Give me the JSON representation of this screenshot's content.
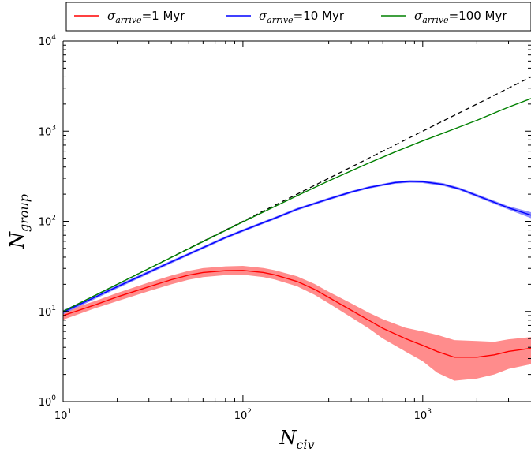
{
  "chart_data": {
    "type": "line",
    "x_scale": "log",
    "y_scale": "log",
    "xlim": [
      10,
      4000
    ],
    "ylim": [
      1,
      10000
    ],
    "grid": false,
    "legend_placement": "top",
    "xlabel": {
      "base": "N",
      "sub": "civ"
    },
    "ylabel": {
      "base": "N",
      "sub": "group"
    },
    "x_ticks": [
      {
        "value": 10,
        "base": "10",
        "exp": "1"
      },
      {
        "value": 100,
        "base": "10",
        "exp": "2"
      },
      {
        "value": 1000,
        "base": "10",
        "exp": "3"
      }
    ],
    "y_ticks": [
      {
        "value": 1,
        "base": "10",
        "exp": "0"
      },
      {
        "value": 10,
        "base": "10",
        "exp": "1"
      },
      {
        "value": 100,
        "base": "10",
        "exp": "2"
      },
      {
        "value": 1000,
        "base": "10",
        "exp": "3"
      },
      {
        "value": 10000,
        "base": "10",
        "exp": "4"
      }
    ],
    "reference_line": {
      "style": "dashed",
      "color": "#000000",
      "x": [
        10,
        4000
      ],
      "y": [
        10,
        4000
      ]
    },
    "series": [
      {
        "label": {
          "sym": "σ",
          "sub": "arrive",
          "rest": "=1 Myr"
        },
        "color": "#ff0000",
        "band_color": "#ff8080",
        "x": [
          10,
          15,
          20,
          30,
          40,
          50,
          60,
          80,
          100,
          130,
          150,
          200,
          250,
          300,
          400,
          500,
          600,
          800,
          1000,
          1200,
          1500,
          2000,
          2500,
          3000,
          4000
        ],
        "y": [
          9.0,
          11.8,
          14.5,
          18.8,
          22.5,
          25.3,
          27.0,
          28.3,
          28.5,
          27.0,
          25.5,
          21.5,
          17.6,
          14.3,
          10.3,
          8.0,
          6.5,
          5.0,
          4.2,
          3.6,
          3.1,
          3.1,
          3.3,
          3.6,
          3.9
        ],
        "y_low": [
          8.1,
          10.8,
          13.0,
          16.8,
          20.0,
          22.5,
          24.0,
          25.3,
          25.5,
          24.0,
          22.6,
          19.0,
          15.3,
          12.3,
          8.6,
          6.5,
          5.0,
          3.6,
          2.8,
          2.1,
          1.7,
          1.8,
          2.0,
          2.3,
          2.6
        ],
        "y_high": [
          10.0,
          13.0,
          16.0,
          21.0,
          25.0,
          28.2,
          30.2,
          31.6,
          32.0,
          30.3,
          28.7,
          24.5,
          20.2,
          16.5,
          12.3,
          9.7,
          8.2,
          6.6,
          6.0,
          5.5,
          4.8,
          4.7,
          4.6,
          4.9,
          5.2
        ]
      },
      {
        "label": {
          "sym": "σ",
          "sub": "arrive",
          "rest": "=10 Myr"
        },
        "color": "#0000ff",
        "band_color": "#8080ff",
        "x": [
          10,
          20,
          40,
          60,
          80,
          100,
          150,
          200,
          300,
          400,
          500,
          700,
          850,
          1000,
          1300,
          1600,
          2000,
          3000,
          4000
        ],
        "y": [
          9.8,
          18.8,
          35.5,
          51,
          66,
          79,
          108,
          136,
          177,
          211,
          237,
          269,
          277,
          275,
          256,
          229,
          193,
          141,
          117
        ],
        "y_low": [
          9.3,
          18.0,
          34.2,
          49.3,
          63.8,
          76.4,
          104.6,
          131.6,
          171.5,
          204.5,
          230,
          261,
          268,
          266,
          247,
          221,
          186,
          135,
          108
        ],
        "y_high": [
          10.3,
          19.6,
          36.8,
          52.7,
          68.2,
          81.6,
          111.4,
          140.4,
          182.5,
          217.5,
          244,
          277,
          286,
          284,
          265,
          237,
          200,
          147,
          126
        ]
      },
      {
        "label": {
          "sym": "σ",
          "sub": "arrive",
          "rest": "=100 Myr"
        },
        "color": "#008000",
        "band_color": null,
        "x": [
          10,
          20,
          50,
          100,
          200,
          300,
          500,
          700,
          1000,
          1500,
          2000,
          3000,
          4000
        ],
        "y": [
          10,
          20,
          49.7,
          98.5,
          192,
          281,
          442,
          587,
          780,
          1060,
          1320,
          1850,
          2300
        ]
      }
    ]
  }
}
